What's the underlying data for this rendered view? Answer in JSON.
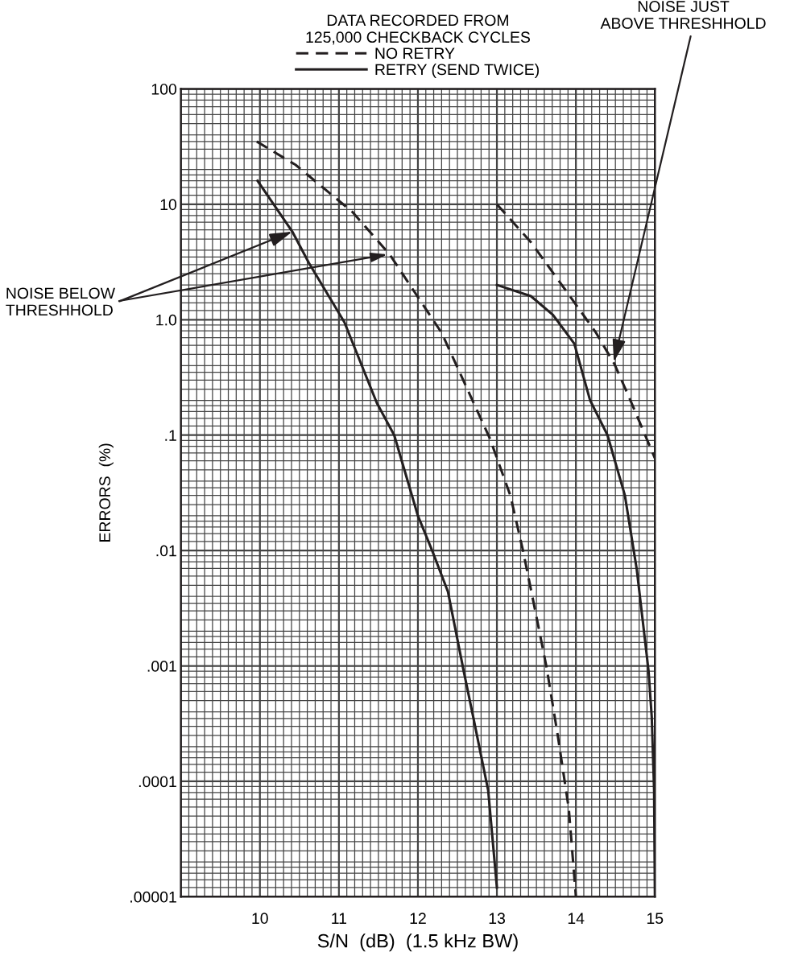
{
  "chart_data": {
    "type": "line",
    "legend_title": "DATA RECORDED FROM\n125,000 CHECKBACK CYCLES",
    "legend": "top",
    "xlabel": "S/N  (dB)  (1.5 kHz BW)",
    "ylabel": "ERRORS  (%)",
    "log": "y",
    "grid": true,
    "xlim": [
      9,
      15
    ],
    "xticks": [
      10,
      11,
      12,
      13,
      14,
      15
    ],
    "ylim": [
      1e-05,
      100
    ],
    "yticks": [
      {
        "value": 100,
        "label": "100"
      },
      {
        "value": 10,
        "label": "10"
      },
      {
        "value": 1,
        "label": "1.0"
      },
      {
        "value": 0.1,
        "label": ".1"
      },
      {
        "value": 0.01,
        "label": ".01"
      },
      {
        "value": 0.001,
        "label": ".001"
      },
      {
        "value": 0.0001,
        "label": ".0001"
      },
      {
        "value": 1e-05,
        "label": ".00001"
      }
    ],
    "series": [
      {
        "name": "NO RETRY",
        "color": "#231f20",
        "line_style": "dashed",
        "x": [
          9.96,
          10.45,
          11.17,
          11.64,
          12.3,
          12.91,
          13.17,
          13.33,
          13.49,
          13.63,
          13.77,
          13.91,
          14.0
        ],
        "values": [
          35,
          22,
          8.6,
          3.7,
          0.77,
          0.094,
          0.03,
          0.01,
          0.0029,
          0.00096,
          0.00025,
          5.8e-05,
          1e-05
        ]
      },
      {
        "name": "RETRY (SEND TWICE)",
        "color": "#231f20",
        "line_style": "solid",
        "x": [
          9.97,
          10.41,
          10.62,
          11.07,
          11.48,
          11.7,
          12.0,
          12.18,
          12.38,
          12.58,
          12.69,
          12.89,
          13.0
        ],
        "values": [
          16,
          5.8,
          3.1,
          0.95,
          0.19,
          0.1,
          0.02,
          0.01,
          0.0044,
          0.0009,
          0.00039,
          8.3e-05,
          1.2e-05
        ]
      },
      {
        "color": "#231f20",
        "line_style": "dashed",
        "x": [
          13.0,
          13.43,
          13.87,
          14.25,
          14.49,
          14.69,
          15.0
        ],
        "values": [
          10,
          4.7,
          1.8,
          0.78,
          0.41,
          0.2,
          0.063
        ]
      },
      {
        "color": "#231f20",
        "line_style": "solid",
        "x": [
          13.0,
          13.43,
          13.71,
          13.98,
          14.18,
          14.4,
          14.62,
          14.77,
          14.92,
          14.96,
          14.99,
          15.0
        ],
        "values": [
          2.0,
          1.6,
          1.1,
          0.62,
          0.2,
          0.1,
          0.03,
          0.0069,
          0.0009,
          0.00036,
          8.3e-05,
          1e-05
        ]
      }
    ],
    "annotations": [
      {
        "text": "NOISE BELOW\nTHRESHHOLD",
        "x": 10.41,
        "y": 5.8
      },
      {
        "text": "NOISE JUST\nABOVE THRESHHOLD",
        "x": 14.48,
        "y": 0.43
      }
    ]
  }
}
